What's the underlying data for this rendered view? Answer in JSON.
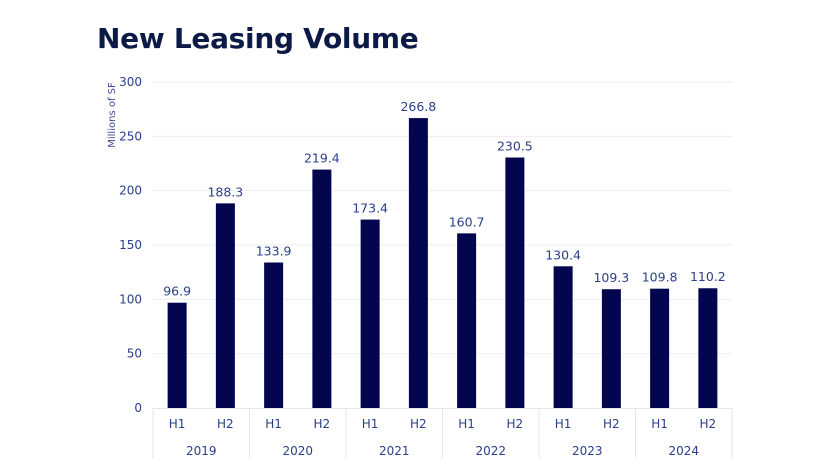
{
  "chart_data": {
    "type": "bar",
    "title": "New Leasing Volume",
    "xlabel": "",
    "ylabel": "Millions of SF",
    "ylim": [
      0,
      300
    ],
    "yticks": [
      0,
      50,
      100,
      150,
      200,
      250,
      300
    ],
    "grid": true,
    "legend": "none",
    "bar_color": "#03064f",
    "groups": [
      "2019",
      "2020",
      "2021",
      "2022",
      "2023",
      "2024"
    ],
    "categories": [
      "H1",
      "H2",
      "H1",
      "H2",
      "H1",
      "H2",
      "H1",
      "H2",
      "H1",
      "H2",
      "H1",
      "H2"
    ],
    "series": [
      {
        "name": "New Leasing Volume",
        "values": [
          96.9,
          188.3,
          133.9,
          219.4,
          173.4,
          266.8,
          160.7,
          230.5,
          130.4,
          109.3,
          109.8,
          110.2
        ],
        "labels": [
          "96.9",
          "188.3",
          "133.9",
          "219.4",
          "173.4",
          "266.8",
          "160.7",
          "230.5",
          "130.4",
          "109.3",
          "109.8",
          "110.2"
        ]
      }
    ]
  }
}
